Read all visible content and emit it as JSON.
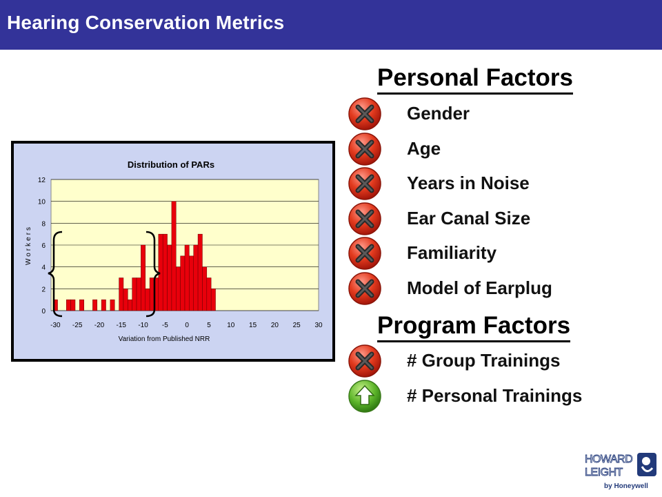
{
  "header": {
    "title": "Hearing Conservation Metrics",
    "bg_color": "#333399"
  },
  "personal": {
    "heading": "Personal Factors",
    "items": [
      {
        "label": "Gender",
        "icon": "x-icon"
      },
      {
        "label": "Age",
        "icon": "x-icon"
      },
      {
        "label": "Years in Noise",
        "icon": "x-icon"
      },
      {
        "label": "Ear Canal Size",
        "icon": "x-icon"
      },
      {
        "label": "Familiarity",
        "icon": "x-icon"
      },
      {
        "label": "Model of Earplug",
        "icon": "x-icon"
      }
    ]
  },
  "program": {
    "heading": "Program Factors",
    "items": [
      {
        "label": "# Group Trainings",
        "icon": "x-icon"
      },
      {
        "label": "# Personal Trainings",
        "icon": "up-arrow-icon"
      }
    ]
  },
  "chart_data": {
    "type": "bar",
    "title": "Distribution of PARs",
    "xlabel": "Variation from Published NRR",
    "ylabel": "Workers",
    "xlim": [
      -31,
      30
    ],
    "ylim": [
      0,
      12
    ],
    "x_ticks": [
      -30,
      -25,
      -20,
      -15,
      -10,
      -5,
      0,
      5,
      10,
      15,
      20,
      25,
      30
    ],
    "y_ticks": [
      0,
      2,
      4,
      6,
      8,
      10,
      12
    ],
    "grid": true,
    "x": [
      -30,
      -29,
      -28,
      -27,
      -26,
      -25,
      -24,
      -23,
      -22,
      -21,
      -20,
      -19,
      -18,
      -17,
      -16,
      -15,
      -14,
      -13,
      -12,
      -11,
      -10,
      -9,
      -8,
      -7,
      -6,
      -5,
      -4,
      -3,
      -2,
      -1,
      0,
      1,
      2,
      3,
      4,
      5,
      6,
      7,
      8
    ],
    "values": [
      1,
      0,
      0,
      1,
      1,
      0,
      1,
      0,
      0,
      1,
      0,
      1,
      0,
      1,
      0,
      3,
      2,
      1,
      3,
      3,
      6,
      2,
      3,
      3,
      7,
      7,
      6,
      10,
      4,
      5,
      6,
      5,
      6,
      7,
      4,
      3,
      2,
      0,
      0
    ],
    "colors": {
      "bar": "#e8000b",
      "plot_bg": "#ffffcc",
      "frame_bg": "#ccd4f2"
    }
  },
  "logo": {
    "line1": "HOWARD",
    "line2": "LEIGHT",
    "line3": "by Honeywell"
  }
}
